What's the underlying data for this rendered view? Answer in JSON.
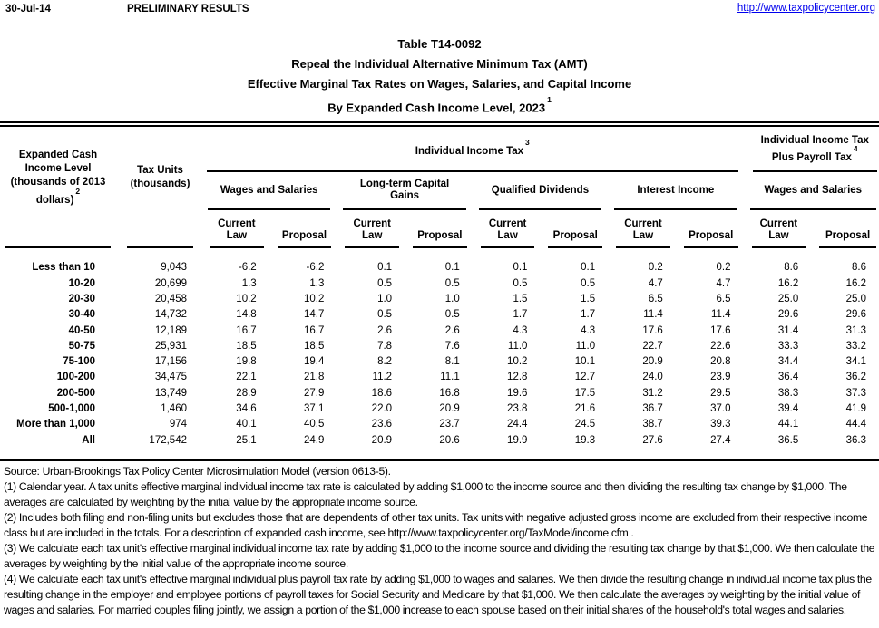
{
  "header": {
    "date": "30-Jul-14",
    "status": "PRELIMINARY RESULTS",
    "link": "http://www.taxpolicycenter.org"
  },
  "title": {
    "line1": "Table T14-0092",
    "line2": "Repeal the Individual Alternative Minimum Tax (AMT)",
    "line3": "Effective Marginal Tax Rates on Wages, Salaries, and Capital Income",
    "line4": "By Expanded Cash Income Level, 2023",
    "line4_sup": "1"
  },
  "table": {
    "col1_header": {
      "lines": [
        "Expanded Cash",
        "Income Level",
        "(thousands of 2013"
      ],
      "last_line": "dollars)",
      "sup": "2"
    },
    "col2_header": {
      "line1": "Tax Units",
      "line2": "(thousands)"
    },
    "span_header": {
      "label": "Individual Income Tax",
      "sup": "3"
    },
    "payroll_header": {
      "line1": "Individual Income Tax",
      "line2": "Plus Payroll Tax",
      "sup": "4"
    },
    "groups": [
      "Wages and Salaries",
      "Long-term Capital Gains",
      "Qualified Dividends",
      "Interest Income",
      "Wages and Salaries"
    ],
    "sub": {
      "current": "Current",
      "law": "Law",
      "proposal": "Proposal"
    },
    "rows": [
      {
        "label": "Less than 10",
        "values": [
          "9,043",
          "-6.2",
          "-6.2",
          "0.1",
          "0.1",
          "0.1",
          "0.1",
          "0.2",
          "0.2",
          "8.6",
          "8.6"
        ]
      },
      {
        "label": "10-20",
        "values": [
          "20,699",
          "1.3",
          "1.3",
          "0.5",
          "0.5",
          "0.5",
          "0.5",
          "4.7",
          "4.7",
          "16.2",
          "16.2"
        ]
      },
      {
        "label": "20-30",
        "values": [
          "20,458",
          "10.2",
          "10.2",
          "1.0",
          "1.0",
          "1.5",
          "1.5",
          "6.5",
          "6.5",
          "25.0",
          "25.0"
        ]
      },
      {
        "label": "30-40",
        "values": [
          "14,732",
          "14.8",
          "14.7",
          "0.5",
          "0.5",
          "1.7",
          "1.7",
          "11.4",
          "11.4",
          "29.6",
          "29.6"
        ]
      },
      {
        "label": "40-50",
        "values": [
          "12,189",
          "16.7",
          "16.7",
          "2.6",
          "2.6",
          "4.3",
          "4.3",
          "17.6",
          "17.6",
          "31.4",
          "31.3"
        ]
      },
      {
        "label": "50-75",
        "values": [
          "25,931",
          "18.5",
          "18.5",
          "7.8",
          "7.6",
          "11.0",
          "11.0",
          "22.7",
          "22.6",
          "33.3",
          "33.2"
        ]
      },
      {
        "label": "75-100",
        "values": [
          "17,156",
          "19.8",
          "19.4",
          "8.2",
          "8.1",
          "10.2",
          "10.1",
          "20.9",
          "20.8",
          "34.4",
          "34.1"
        ]
      },
      {
        "label": "100-200",
        "values": [
          "34,475",
          "22.1",
          "21.8",
          "11.2",
          "11.1",
          "12.8",
          "12.7",
          "24.0",
          "23.9",
          "36.4",
          "36.2"
        ]
      },
      {
        "label": "200-500",
        "values": [
          "13,749",
          "28.9",
          "27.9",
          "18.6",
          "16.8",
          "19.6",
          "17.5",
          "31.2",
          "29.5",
          "38.3",
          "37.3"
        ]
      },
      {
        "label": "500-1,000",
        "values": [
          "1,460",
          "34.6",
          "37.1",
          "22.0",
          "20.9",
          "23.8",
          "21.6",
          "36.7",
          "37.0",
          "39.4",
          "41.9"
        ]
      },
      {
        "label": "More than 1,000",
        "values": [
          "974",
          "40.1",
          "40.5",
          "23.6",
          "23.7",
          "24.4",
          "24.5",
          "38.7",
          "39.3",
          "44.1",
          "44.4"
        ]
      },
      {
        "label": "All",
        "values": [
          "172,542",
          "25.1",
          "24.9",
          "20.9",
          "20.6",
          "19.9",
          "19.3",
          "27.6",
          "27.4",
          "36.5",
          "36.3"
        ]
      }
    ]
  },
  "footnotes": {
    "source": "Source: Urban-Brookings Tax Policy Center Microsimulation Model (version 0613-5).",
    "notes": [
      "(1) Calendar year.  A tax unit's effective marginal individual income tax rate is calculated by adding $1,000 to the income source and then dividing the resulting tax change by $1,000.  The averages are calculated by weighting by the initial value by the appropriate income source.",
      "(2) Includes both filing and non-filing units but excludes those that are dependents of other tax units. Tax units with negative adjusted gross income are excluded from their respective income class but are included in the totals. For a description of expanded cash income, see http://www.taxpolicycenter.org/TaxModel/income.cfm .",
      "(3) We calculate each tax unit's effective marginal individual income tax rate by adding $1,000 to the income source and dividing the resulting tax change by that $1,000. We then calculate the averages by weighting by the initial value of the appropriate income source.",
      "(4) We calculate each tax unit's effective marginal individual plus payroll tax rate by adding $1,000 to wages and salaries. We then divide the resulting change in individual income tax plus the resulting change in the employer and employee portions of payroll taxes for Social Security and Medicare by that $1,000. We then calculate the averages by weighting by the initial value of wages and salaries. For married couples filing jointly, we assign a portion of the $1,000 increase to each spouse based on their initial shares of the household's total wages and salaries."
    ]
  }
}
